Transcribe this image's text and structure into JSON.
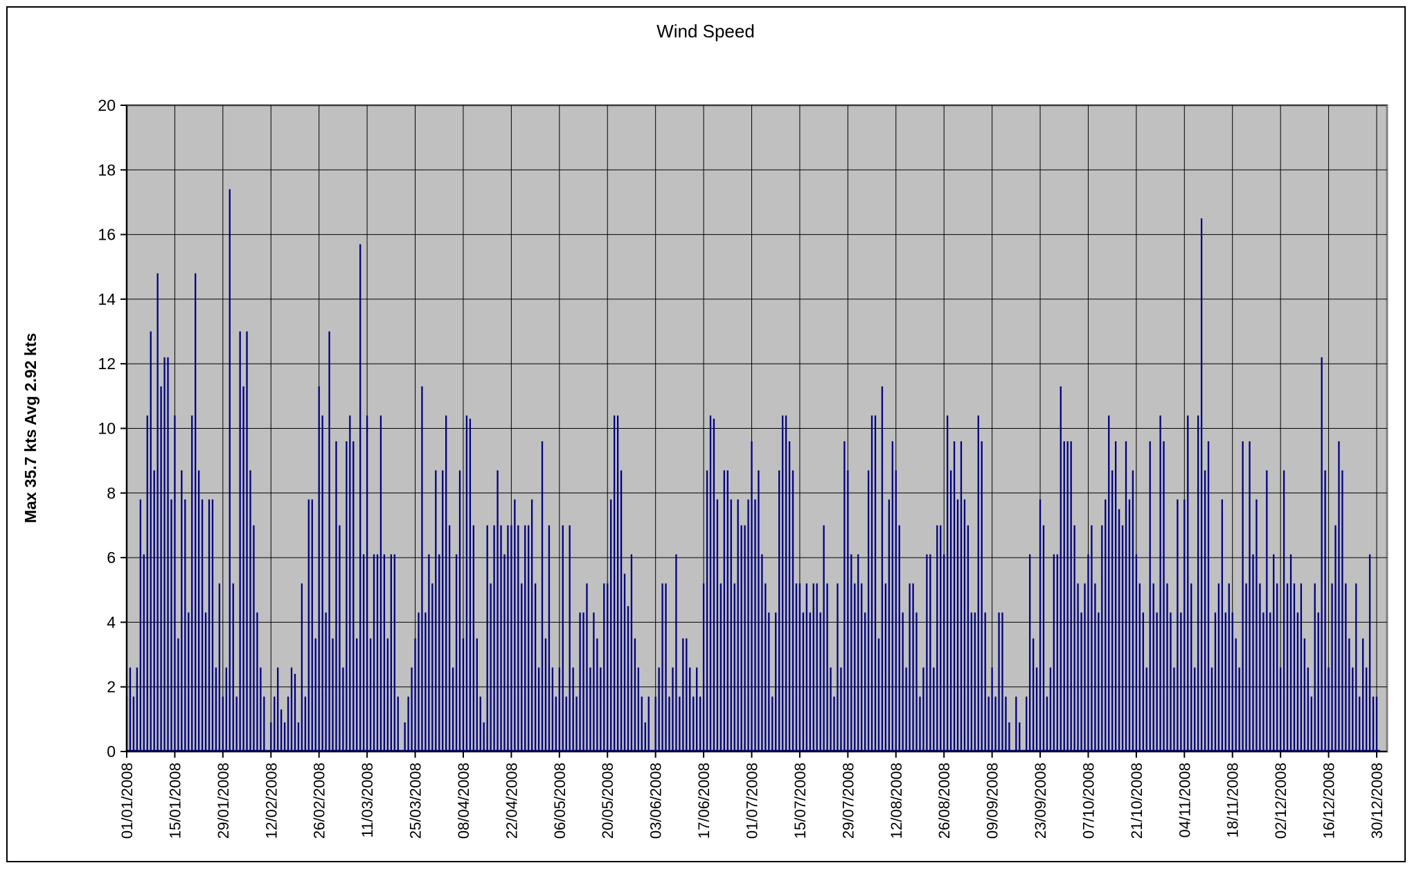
{
  "chart_data": {
    "type": "line",
    "title": "Wind Speed",
    "xlabel": "",
    "ylabel": "Max 35.7 kts Avg 2.92 kts",
    "ylim": [
      0,
      20
    ],
    "y_tick_step": 2,
    "y_tick_labels": [
      "0",
      "2",
      "4",
      "6",
      "8",
      "10",
      "12",
      "14",
      "16",
      "18",
      "20"
    ],
    "x_tick_labels": [
      "01/01/2008",
      "15/01/2008",
      "29/01/2008",
      "12/02/2008",
      "26/02/2008",
      "11/03/2008",
      "25/03/2008",
      "08/04/2008",
      "22/04/2008",
      "06/05/2008",
      "20/05/2008",
      "03/06/2008",
      "17/06/2008",
      "01/07/2008",
      "15/07/2008",
      "29/07/2008",
      "12/08/2008",
      "26/08/2008",
      "09/09/2008",
      "23/09/2008",
      "07/10/2008",
      "21/10/2008",
      "04/11/2008",
      "18/11/2008",
      "02/12/2008",
      "16/12/2008",
      "30/12/2008"
    ],
    "x_tick_interval_days": 14,
    "grid": true,
    "legend": "none",
    "series": [
      {
        "name": "Wind Speed (kts), daily, 01/01/2008 - 31/12/2008",
        "values": [
          1.7,
          2.6,
          1.7,
          2.6,
          7.8,
          6.1,
          10.4,
          13.0,
          8.7,
          14.8,
          11.3,
          12.2,
          12.2,
          7.8,
          10.4,
          3.5,
          8.7,
          7.8,
          4.3,
          10.4,
          14.8,
          8.7,
          7.8,
          4.3,
          7.8,
          7.8,
          2.6,
          5.2,
          1.7,
          2.6,
          17.4,
          5.2,
          1.7,
          13.0,
          11.3,
          13.0,
          8.7,
          7.0,
          4.3,
          2.6,
          1.7,
          0.0,
          0.9,
          1.7,
          2.6,
          1.3,
          0.9,
          1.7,
          2.6,
          2.4,
          0.9,
          5.2,
          1.7,
          7.8,
          7.8,
          3.5,
          11.3,
          10.4,
          4.3,
          13.0,
          3.5,
          9.6,
          7.0,
          2.6,
          9.6,
          10.4,
          9.6,
          3.5,
          15.7,
          6.1,
          10.4,
          3.5,
          6.1,
          6.1,
          10.4,
          6.1,
          3.5,
          6.1,
          6.1,
          1.7,
          0.0,
          0.9,
          1.7,
          2.6,
          3.5,
          4.3,
          11.3,
          4.3,
          6.1,
          5.2,
          8.7,
          6.1,
          8.7,
          10.4,
          7.0,
          2.6,
          6.1,
          8.7,
          3.5,
          10.4,
          10.3,
          7.0,
          3.5,
          1.7,
          0.9,
          7.0,
          5.2,
          7.0,
          8.7,
          7.0,
          6.1,
          7.0,
          7.0,
          7.8,
          7.0,
          5.2,
          7.0,
          7.0,
          7.8,
          5.2,
          2.6,
          9.6,
          3.5,
          7.0,
          2.6,
          1.7,
          2.6,
          7.0,
          1.7,
          7.0,
          2.6,
          1.7,
          4.3,
          4.3,
          5.2,
          2.6,
          4.3,
          3.5,
          2.6,
          5.2,
          5.2,
          7.8,
          10.4,
          10.4,
          8.7,
          5.5,
          4.5,
          6.1,
          3.5,
          2.6,
          1.7,
          0.9,
          1.7,
          0.0,
          1.7,
          2.6,
          5.2,
          5.2,
          1.7,
          2.6,
          6.1,
          1.7,
          3.5,
          3.5,
          2.6,
          1.7,
          2.6,
          1.7,
          5.2,
          8.7,
          10.4,
          10.3,
          7.8,
          5.2,
          8.7,
          8.7,
          7.8,
          5.2,
          7.8,
          7.0,
          7.0,
          7.8,
          9.6,
          7.8,
          8.7,
          6.1,
          5.2,
          4.3,
          1.7,
          4.3,
          8.7,
          10.4,
          10.4,
          9.6,
          8.7,
          5.2,
          5.2,
          4.3,
          5.2,
          4.3,
          5.2,
          5.2,
          4.3,
          7.0,
          5.2,
          2.6,
          1.7,
          5.2,
          2.6,
          9.6,
          8.7,
          6.1,
          5.2,
          6.1,
          5.2,
          4.3,
          8.7,
          10.4,
          10.4,
          3.5,
          11.3,
          5.2,
          7.8,
          9.6,
          8.7,
          7.0,
          4.3,
          2.6,
          5.2,
          5.2,
          4.3,
          1.7,
          2.6,
          6.1,
          6.1,
          2.6,
          7.0,
          7.0,
          6.1,
          10.4,
          8.7,
          9.6,
          7.8,
          9.6,
          7.8,
          7.0,
          4.3,
          4.3,
          10.4,
          9.6,
          4.3,
          1.7,
          2.6,
          1.7,
          4.3,
          4.3,
          1.7,
          0.9,
          0.0,
          1.7,
          0.9,
          0.0,
          1.7,
          6.1,
          3.5,
          2.6,
          7.8,
          7.0,
          1.7,
          2.6,
          6.1,
          6.1,
          11.3,
          9.6,
          9.6,
          9.6,
          7.0,
          5.2,
          4.3,
          5.2,
          6.1,
          7.0,
          5.2,
          4.3,
          7.0,
          7.8,
          10.4,
          8.7,
          9.6,
          7.5,
          7.0,
          9.6,
          7.8,
          8.7,
          6.1,
          5.2,
          4.3,
          2.6,
          9.6,
          5.2,
          4.3,
          10.4,
          9.6,
          5.2,
          4.3,
          2.6,
          7.8,
          4.3,
          7.8,
          10.4,
          5.2,
          2.6,
          10.4,
          16.5,
          8.7,
          9.6,
          2.6,
          4.3,
          5.2,
          7.8,
          4.3,
          5.2,
          4.3,
          3.5,
          2.6,
          9.6,
          5.2,
          9.6,
          6.1,
          7.8,
          5.2,
          4.3,
          8.7,
          4.3,
          6.1,
          5.2,
          2.6,
          8.7,
          5.2,
          6.1,
          5.2,
          4.3,
          5.2,
          3.5,
          2.6,
          1.7,
          5.2,
          4.3,
          12.2,
          8.7,
          2.6,
          5.2,
          7.0,
          9.6,
          8.7,
          5.2,
          3.5,
          2.6,
          5.2,
          1.7,
          3.5,
          2.6,
          6.1,
          1.7,
          1.7,
          0.0
        ]
      }
    ],
    "annotations": {
      "max_label": "Max 35.7 kts",
      "avg_label": "Avg 2.92 kts"
    },
    "colors": {
      "line": "#000080",
      "plot_background": "#C0C0C0",
      "plot_border": "#808080",
      "gridline": "#000000",
      "axis": "#000000",
      "chart_border": "#000000",
      "canvas_background": "#FFFFFF",
      "text": "#000000"
    }
  }
}
